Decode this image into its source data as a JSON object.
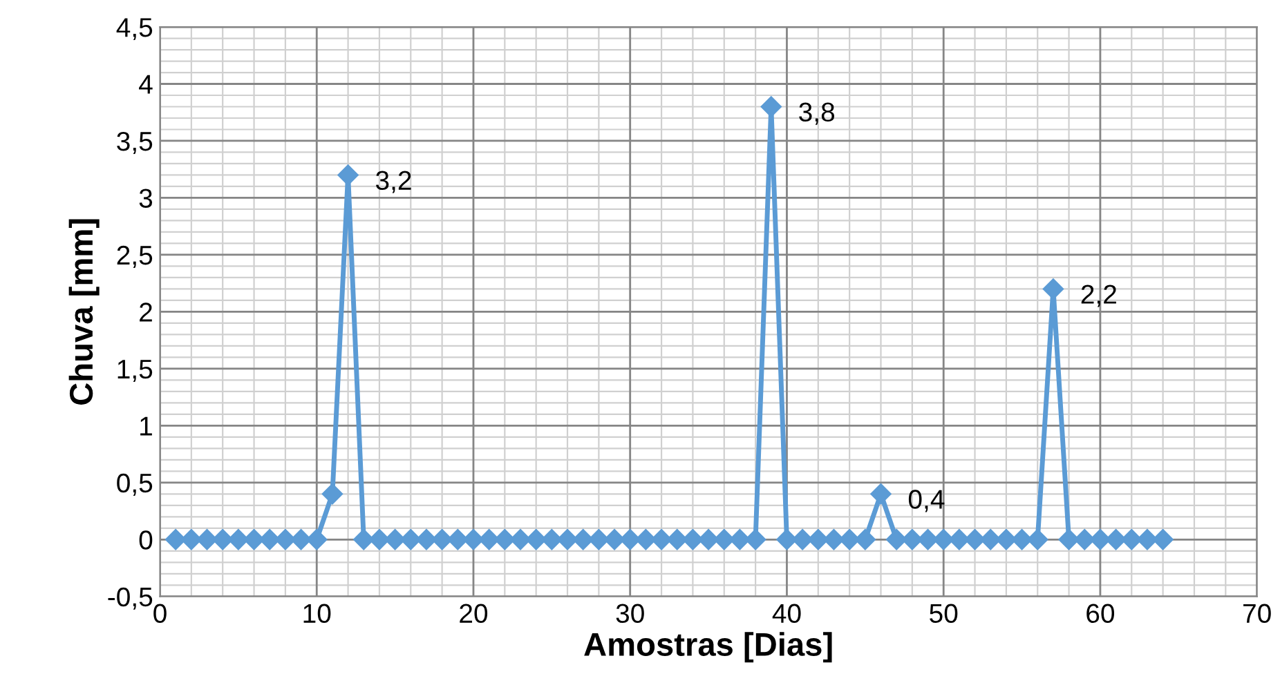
{
  "chart_data": {
    "type": "line",
    "xlabel": "Amostras [Dias]",
    "ylabel": "Chuva [mm]",
    "x": [
      1,
      2,
      3,
      4,
      5,
      6,
      7,
      8,
      9,
      10,
      11,
      12,
      13,
      14,
      15,
      16,
      17,
      18,
      19,
      20,
      21,
      22,
      23,
      24,
      25,
      26,
      27,
      28,
      29,
      30,
      31,
      32,
      33,
      34,
      35,
      36,
      37,
      38,
      39,
      40,
      41,
      42,
      43,
      44,
      45,
      46,
      47,
      48,
      49,
      50,
      51,
      52,
      53,
      54,
      55,
      56,
      57,
      58,
      59,
      60,
      61,
      62,
      63,
      64
    ],
    "series": [
      {
        "color": "#5b9bd5",
        "values": [
          0,
          0,
          0,
          0,
          0,
          0,
          0,
          0,
          0,
          0,
          0.4,
          3.2,
          0,
          0,
          0,
          0,
          0,
          0,
          0,
          0,
          0,
          0,
          0,
          0,
          0,
          0,
          0,
          0,
          0,
          0,
          0,
          0,
          0,
          0,
          0,
          0,
          0,
          0,
          3.8,
          0,
          0,
          0,
          0,
          0,
          0,
          0.4,
          0,
          0,
          0,
          0,
          0,
          0,
          0,
          0,
          0,
          0,
          2.2,
          0,
          0,
          0,
          0,
          0,
          0,
          0
        ],
        "value_labels": [
          null,
          null,
          null,
          null,
          null,
          null,
          null,
          null,
          null,
          null,
          null,
          "3,2",
          null,
          null,
          null,
          null,
          null,
          null,
          null,
          null,
          null,
          null,
          null,
          null,
          null,
          null,
          null,
          null,
          null,
          null,
          null,
          null,
          null,
          null,
          null,
          null,
          null,
          null,
          "3,8",
          null,
          null,
          null,
          null,
          null,
          null,
          "0,4",
          null,
          null,
          null,
          null,
          null,
          null,
          null,
          null,
          null,
          null,
          "2,2",
          null,
          null,
          null,
          null,
          null,
          null,
          null
        ]
      }
    ],
    "xlim": [
      0,
      70
    ],
    "xticks": [
      0,
      10,
      20,
      30,
      40,
      50,
      60,
      70
    ],
    "ylim": [
      -0.5,
      4.5
    ],
    "yticks": [
      {
        "value": -0.5,
        "label": "-0,5"
      },
      0,
      {
        "value": 0.5,
        "label": "0,5"
      },
      1,
      {
        "value": 1.5,
        "label": "1,5"
      },
      2,
      {
        "value": 2.5,
        "label": "2,5"
      },
      3,
      {
        "value": 3.5,
        "label": "3,5"
      },
      4,
      {
        "value": 4.5,
        "label": "4,5"
      }
    ],
    "grid": true,
    "marker": "diamond",
    "line_style": "solid",
    "legend": false
  }
}
